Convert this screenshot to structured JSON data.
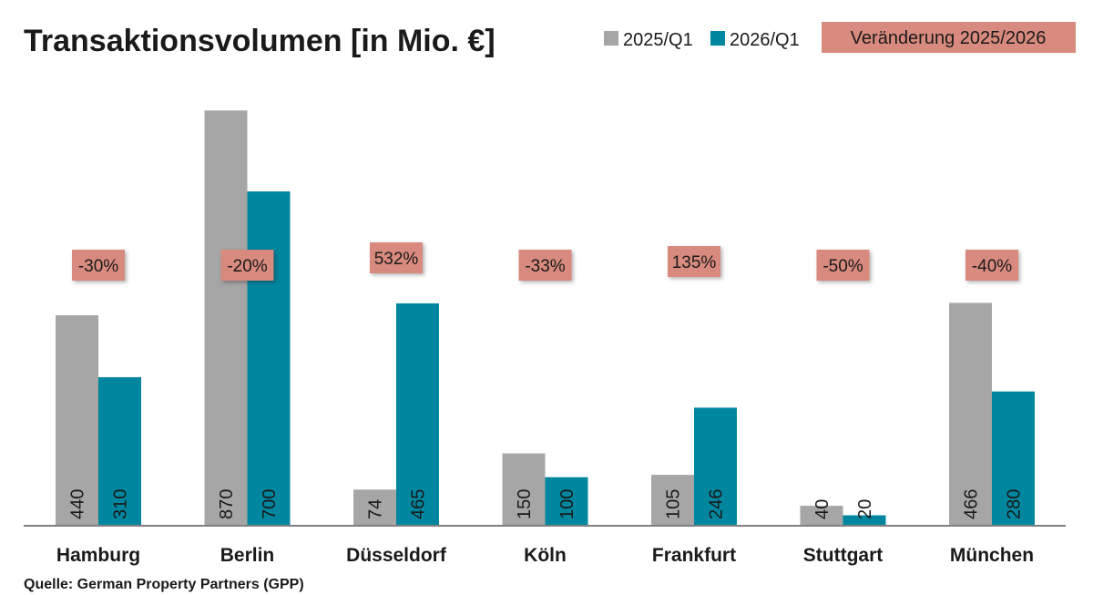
{
  "title": "Transaktionsvolumen [in Mio. €]",
  "source": "Quelle: German Property Partners (GPP)",
  "legend": {
    "series1_label": "2025/Q1",
    "series2_label": "2026/Q1",
    "change_label": "Veränderung 2025/2026"
  },
  "colors": {
    "series1": "#a6a6a6",
    "series2": "#00869f",
    "change_box": "#d88a7e",
    "axis": "#808080",
    "text": "#1a1a1a"
  },
  "chart_data": {
    "type": "bar",
    "title": "Transaktionsvolumen [in Mio. €]",
    "categories": [
      "Hamburg",
      "Berlin",
      "Düsseldorf",
      "Köln",
      "Frankfurt",
      "Stuttgart",
      "München"
    ],
    "series": [
      {
        "name": "2025/Q1",
        "values": [
          440,
          870,
          74,
          150,
          105,
          40,
          466
        ]
      },
      {
        "name": "2026/Q1",
        "values": [
          310,
          700,
          465,
          100,
          246,
          20,
          280
        ]
      }
    ],
    "change_labels": [
      "-30%",
      "-20%",
      "532%",
      "-33%",
      "135%",
      "-50%",
      "-40%"
    ],
    "ylim": [
      0,
      880
    ],
    "grid": false,
    "legend_position": "top-right",
    "value_labels": "inside-bar-bottom-rotated"
  }
}
